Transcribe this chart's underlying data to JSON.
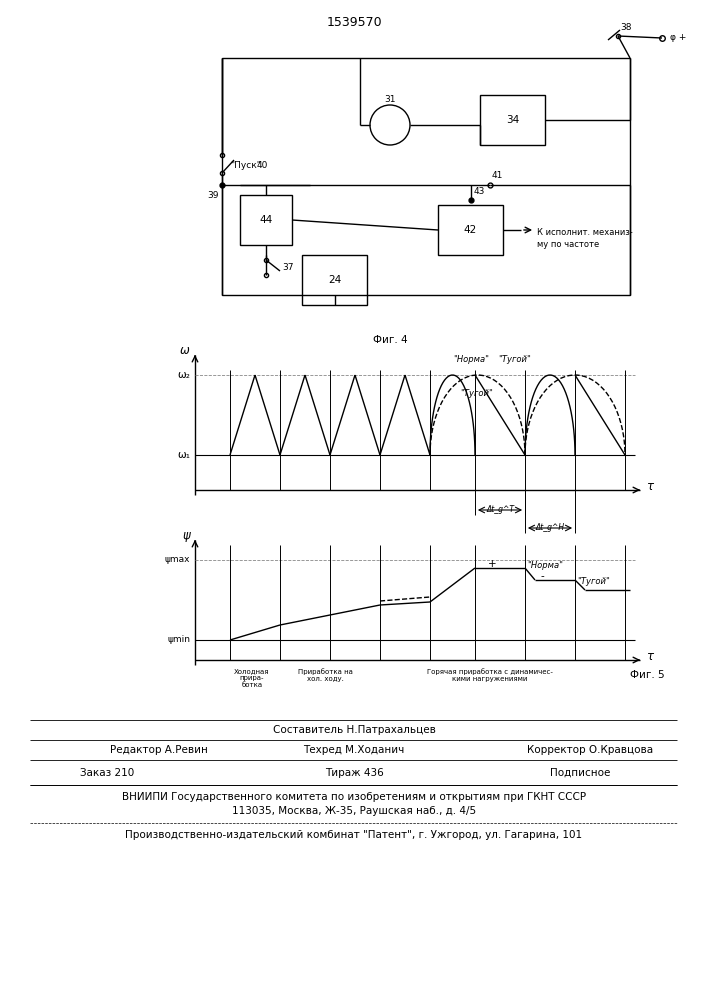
{
  "title": "1539570",
  "fig_width": 7.07,
  "fig_height": 10.0,
  "footer": {
    "sostavitel": "Составитель Н.Патрахальцев",
    "redaktor": "Редактор А.Ревин",
    "tehred": "Техред М.Ходанич",
    "korrektor": "Корректор О.Кравцова",
    "zakaz": "Заказ 210",
    "tirazh": "Тираж 436",
    "podpisnoe": "Подписное",
    "vniipii": "ВНИИПИ Государственного комитета по изобретениям и открытиям при ГКНТ СССР",
    "address": "113035, Москва, Ж-35, Раушская наб., д. 4/5",
    "kombinat": "Производственно-издательский комбинат \"Патент\", г. Ужгород, ул. Гагарина, 101"
  }
}
